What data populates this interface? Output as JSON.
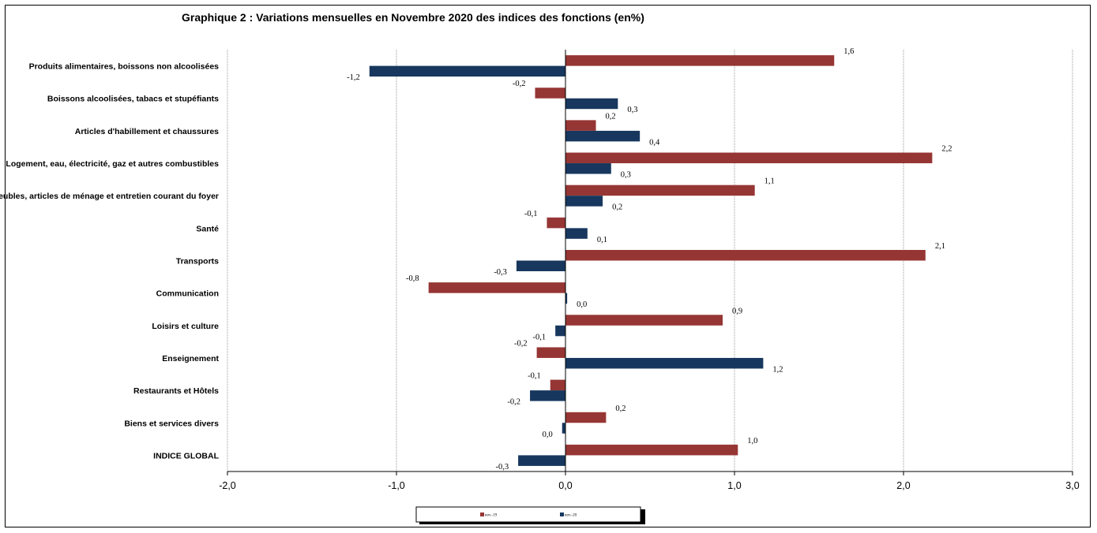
{
  "chart_data": {
    "type": "bar",
    "orientation": "horizontal",
    "title": "Graphique 2 : Variations mensuelles en Novembre 2020 des indices des fonctions (en%)",
    "categories": [
      "Produits alimentaires, boissons non alcoolisées",
      "Boissons alcoolisées, tabacs et stupéfiants",
      "Articles d'habillement et chaussures",
      "Logement, eau, électricité, gaz et autres combustibles",
      "Meubles, articles de ménage et entretien courant du foyer",
      "Santé",
      "Transports",
      "Communication",
      "Loisirs et culture",
      "Enseignement",
      "Restaurants et Hôtels",
      "Biens et services divers",
      "INDICE GLOBAL"
    ],
    "series": [
      {
        "name": "nov.-19",
        "color": "#963634",
        "values": [
          1.59,
          -0.18,
          0.18,
          2.17,
          1.12,
          -0.11,
          2.13,
          -0.81,
          0.93,
          -0.17,
          -0.09,
          0.24,
          1.02
        ],
        "labels": [
          "1,6",
          "-0,2",
          "0,2",
          "2,2",
          "1,1",
          "-0,1",
          "2,1",
          "-0,8",
          "0,9",
          "-0,2",
          "-0,1",
          "0,2",
          "1,0"
        ]
      },
      {
        "name": "nov.-20",
        "color": "#17375E",
        "values": [
          -1.16,
          0.31,
          0.44,
          0.27,
          0.22,
          0.13,
          -0.29,
          0.01,
          -0.06,
          1.17,
          -0.21,
          -0.02,
          -0.28
        ],
        "labels": [
          "-1,2",
          "0,3",
          "0,4",
          "0,3",
          "0,2",
          "0,1",
          "-0,3",
          "0,0",
          "-0,1",
          "1,2",
          "-0,2",
          "0,0",
          "-0,3"
        ]
      }
    ],
    "xlim": [
      -2.0,
      3.0
    ],
    "xticks": [
      -2.0,
      -1.0,
      0.0,
      1.0,
      2.0,
      3.0
    ],
    "xtick_labels": [
      "-2,0",
      "-1,0",
      "0,0",
      "1,0",
      "2,0",
      "3,0"
    ],
    "grid": "vertical dotted",
    "legend_position": "bottom-center"
  }
}
